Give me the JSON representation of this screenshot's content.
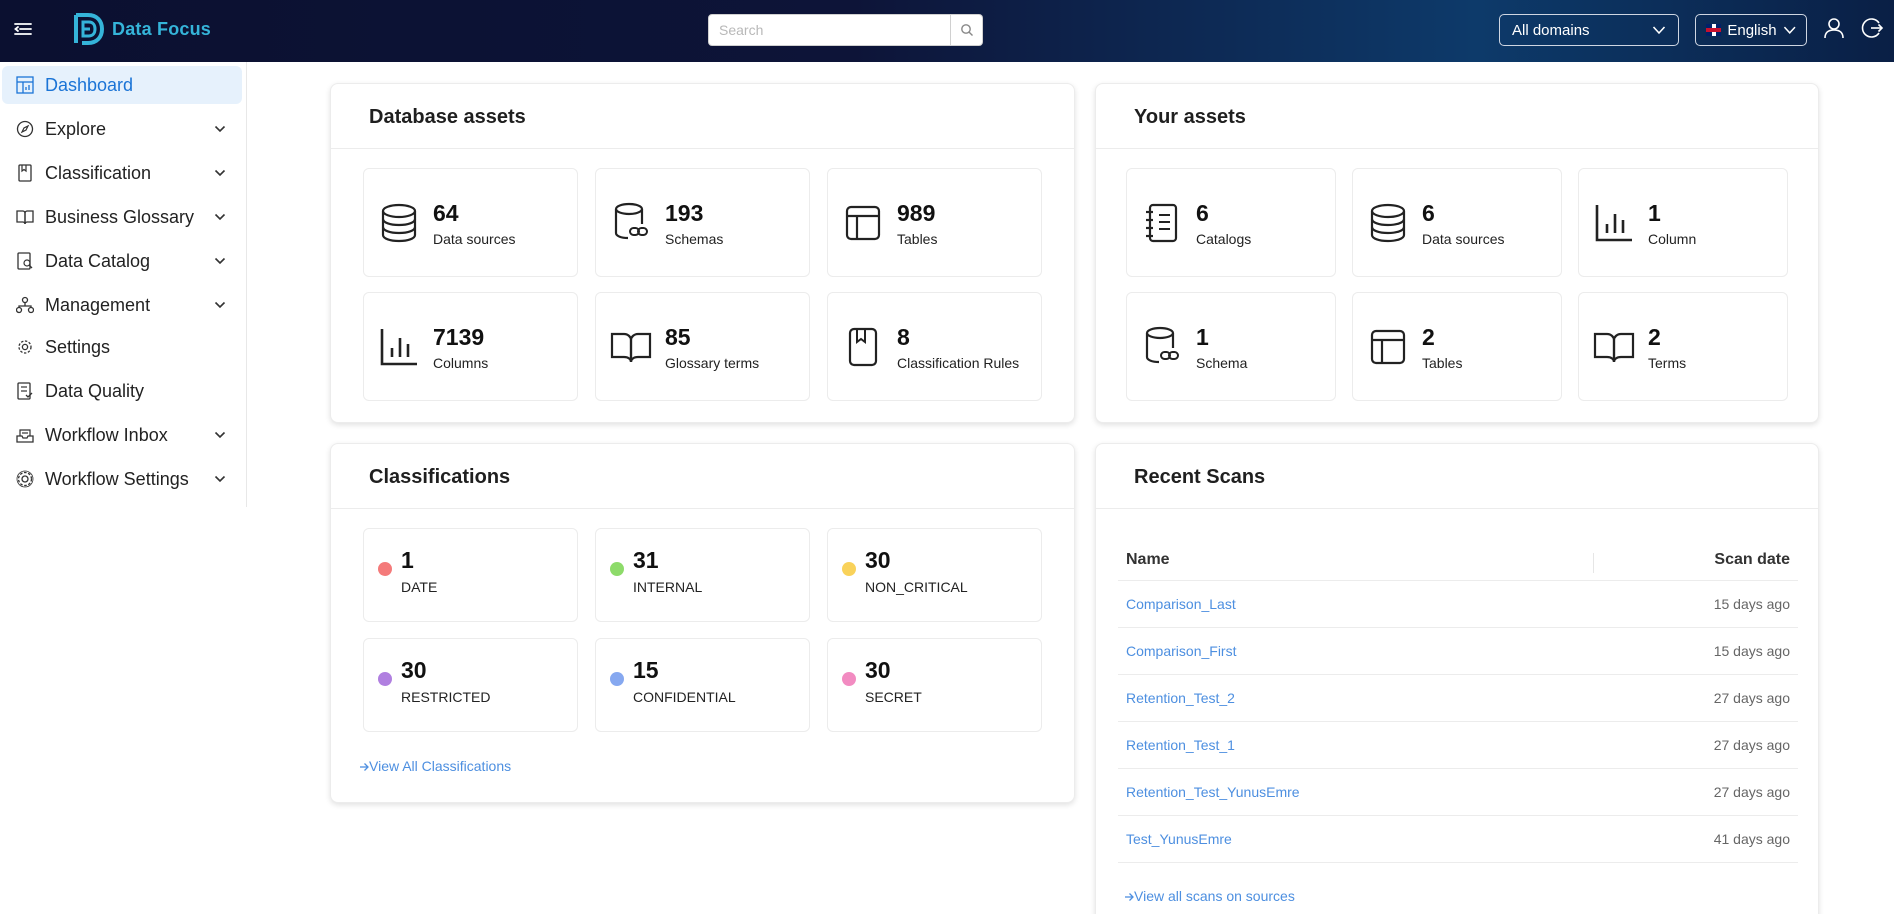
{
  "header": {
    "logo_text": "Data Focus",
    "search_placeholder": "Search",
    "domain_select": "All domains",
    "language_select": "English"
  },
  "sidebar": {
    "items": [
      {
        "label": "Dashboard",
        "icon": "dashboard-icon",
        "active": true,
        "expandable": false
      },
      {
        "label": "Explore",
        "icon": "compass-icon",
        "expandable": true
      },
      {
        "label": "Classification",
        "icon": "bookmark-icon",
        "expandable": true
      },
      {
        "label": "Business Glossary",
        "icon": "book-icon",
        "expandable": true
      },
      {
        "label": "Data Catalog",
        "icon": "catalog-icon",
        "expandable": true
      },
      {
        "label": "Management",
        "icon": "management-icon",
        "expandable": true
      },
      {
        "label": "Settings",
        "icon": "gear-icon",
        "expandable": false
      },
      {
        "label": "Data Quality",
        "icon": "quality-icon",
        "expandable": false
      },
      {
        "label": "Workflow Inbox",
        "icon": "inbox-icon",
        "expandable": true
      },
      {
        "label": "Workflow Settings",
        "icon": "workflow-gear-icon",
        "expandable": true
      }
    ]
  },
  "database_assets": {
    "title": "Database assets",
    "tiles": [
      {
        "value": "64",
        "label": "Data sources",
        "icon": "database-icon"
      },
      {
        "value": "193",
        "label": "Schemas",
        "icon": "schema-icon"
      },
      {
        "value": "989",
        "label": "Tables",
        "icon": "table-icon"
      },
      {
        "value": "7139",
        "label": "Columns",
        "icon": "column-chart-icon"
      },
      {
        "value": "85",
        "label": "Glossary terms",
        "icon": "open-book-icon"
      },
      {
        "value": "8",
        "label": "Classification Rules",
        "icon": "bookmark-book-icon"
      }
    ]
  },
  "your_assets": {
    "title": "Your assets",
    "tiles": [
      {
        "value": "6",
        "label": "Catalogs",
        "icon": "notebook-icon"
      },
      {
        "value": "6",
        "label": "Data sources",
        "icon": "database-icon"
      },
      {
        "value": "1",
        "label": "Column",
        "icon": "column-chart-icon"
      },
      {
        "value": "1",
        "label": "Schema",
        "icon": "schema-icon"
      },
      {
        "value": "2",
        "label": "Tables",
        "icon": "table-icon"
      },
      {
        "value": "2",
        "label": "Terms",
        "icon": "open-book-icon"
      }
    ]
  },
  "classifications": {
    "title": "Classifications",
    "items": [
      {
        "value": "1",
        "label": "DATE",
        "color": "#f47a7a"
      },
      {
        "value": "31",
        "label": "INTERNAL",
        "color": "#8ddb6a"
      },
      {
        "value": "30",
        "label": "NON_CRITICAL",
        "color": "#f9d25a"
      },
      {
        "value": "30",
        "label": "RESTRICTED",
        "color": "#b07fe0"
      },
      {
        "value": "15",
        "label": "CONFIDENTIAL",
        "color": "#86a8f0"
      },
      {
        "value": "30",
        "label": "SECRET",
        "color": "#f28bc1"
      }
    ],
    "link": "View All Classifications"
  },
  "recent_scans": {
    "title": "Recent Scans",
    "col_name": "Name",
    "col_date": "Scan date",
    "rows": [
      {
        "name": "Comparison_Last",
        "date": "15 days ago"
      },
      {
        "name": "Comparison_First",
        "date": "15 days ago"
      },
      {
        "name": "Retention_Test_2",
        "date": "27 days ago"
      },
      {
        "name": "Retention_Test_1",
        "date": "27 days ago"
      },
      {
        "name": "Retention_Test_YunusEmre",
        "date": "27 days ago"
      },
      {
        "name": "Test_YunusEmre",
        "date": "41 days ago"
      }
    ],
    "link": "View all scans on sources"
  },
  "colors": {
    "accent": "#1b74d6",
    "link": "#4d8fe0",
    "logo": "#35b4d9"
  }
}
